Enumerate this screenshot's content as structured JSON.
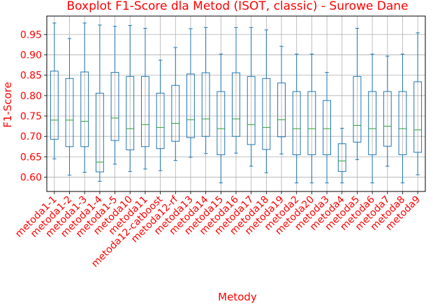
{
  "colors": {
    "text": "#ff0000",
    "box": "#1f77b4",
    "median": "#2ca02c",
    "grid": "#b0b0b0",
    "frame": "#000000"
  },
  "chart_data": {
    "type": "boxplot",
    "title": "Boxplot F1-Score dla Metod (ISOT, classic) - Surowe Dane",
    "xlabel": "Metody",
    "ylabel": "F1-Score",
    "ylim": [
      0.565,
      0.995
    ],
    "yticks": [
      0.6,
      0.65,
      0.7,
      0.75,
      0.8,
      0.85,
      0.9,
      0.95
    ],
    "ytick_labels": [
      "0.60",
      "0.65",
      "0.70",
      "0.75",
      "0.80",
      "0.85",
      "0.90",
      "0.95"
    ],
    "grid": true,
    "categories": [
      "metoda1-1",
      "metoda1-2",
      "metoda1-3",
      "metoda1-4",
      "metoda1-5",
      "metoda10",
      "metoda11",
      "metoda12-catboost",
      "metoda12-rf",
      "metoda13",
      "metoda14",
      "metoda15",
      "metoda16",
      "metoda17",
      "metoda18",
      "metoda19",
      "metoda2",
      "metoda20",
      "metoda3",
      "metoda4",
      "metoda5",
      "metoda6",
      "metoda7",
      "metoda8",
      "metoda9"
    ],
    "boxes": [
      {
        "whislo": 0.645,
        "q1": 0.693,
        "med": 0.74,
        "q3": 0.86,
        "whishi": 0.978
      },
      {
        "whislo": 0.605,
        "q1": 0.675,
        "med": 0.74,
        "q3": 0.842,
        "whishi": 0.94
      },
      {
        "whislo": 0.612,
        "q1": 0.675,
        "med": 0.737,
        "q3": 0.858,
        "whishi": 0.978
      },
      {
        "whislo": 0.59,
        "q1": 0.613,
        "med": 0.637,
        "q3": 0.806,
        "whishi": 0.973
      },
      {
        "whislo": 0.632,
        "q1": 0.69,
        "med": 0.745,
        "q3": 0.857,
        "whishi": 0.97
      },
      {
        "whislo": 0.614,
        "q1": 0.667,
        "med": 0.719,
        "q3": 0.847,
        "whishi": 0.972
      },
      {
        "whislo": 0.62,
        "q1": 0.675,
        "med": 0.729,
        "q3": 0.847,
        "whishi": 0.965
      },
      {
        "whislo": 0.616,
        "q1": 0.67,
        "med": 0.722,
        "q3": 0.806,
        "whishi": 0.887
      },
      {
        "whislo": 0.641,
        "q1": 0.688,
        "med": 0.732,
        "q3": 0.825,
        "whishi": 0.918
      },
      {
        "whislo": 0.649,
        "q1": 0.697,
        "med": 0.741,
        "q3": 0.853,
        "whishi": 0.964
      },
      {
        "whislo": 0.658,
        "q1": 0.7,
        "med": 0.743,
        "q3": 0.856,
        "whishi": 0.967
      },
      {
        "whislo": 0.586,
        "q1": 0.655,
        "med": 0.719,
        "q3": 0.81,
        "whishi": 0.902
      },
      {
        "whislo": 0.659,
        "q1": 0.7,
        "med": 0.743,
        "q3": 0.856,
        "whishi": 0.967
      },
      {
        "whislo": 0.627,
        "q1": 0.68,
        "med": 0.729,
        "q3": 0.847,
        "whishi": 0.967
      },
      {
        "whislo": 0.611,
        "q1": 0.668,
        "med": 0.722,
        "q3": 0.842,
        "whishi": 0.961
      },
      {
        "whislo": 0.657,
        "q1": 0.699,
        "med": 0.741,
        "q3": 0.831,
        "whishi": 0.921
      },
      {
        "whislo": 0.586,
        "q1": 0.655,
        "med": 0.719,
        "q3": 0.81,
        "whishi": 0.902
      },
      {
        "whislo": 0.586,
        "q1": 0.655,
        "med": 0.719,
        "q3": 0.81,
        "whishi": 0.902
      },
      {
        "whislo": 0.586,
        "q1": 0.655,
        "med": 0.719,
        "q3": 0.788,
        "whishi": 0.857
      },
      {
        "whislo": 0.586,
        "q1": 0.614,
        "med": 0.64,
        "q3": 0.682,
        "whishi": 0.72
      },
      {
        "whislo": 0.643,
        "q1": 0.686,
        "med": 0.727,
        "q3": 0.847,
        "whishi": 0.965
      },
      {
        "whislo": 0.586,
        "q1": 0.655,
        "med": 0.719,
        "q3": 0.81,
        "whishi": 0.902
      },
      {
        "whislo": 0.627,
        "q1": 0.676,
        "med": 0.725,
        "q3": 0.81,
        "whishi": 0.897
      },
      {
        "whislo": 0.586,
        "q1": 0.655,
        "med": 0.719,
        "q3": 0.81,
        "whishi": 0.902
      },
      {
        "whislo": 0.606,
        "q1": 0.661,
        "med": 0.716,
        "q3": 0.834,
        "whishi": 0.954
      }
    ]
  }
}
